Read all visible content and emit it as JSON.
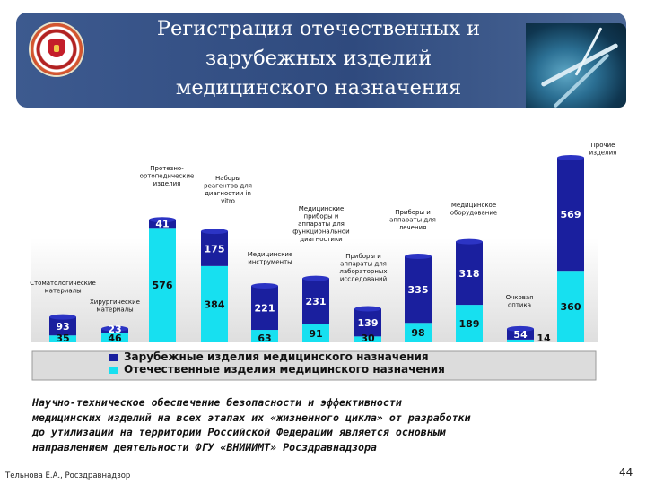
{
  "slide": {
    "title": "Регистрация отечественных и\nзарубежных изделий\nмедицинского назначения",
    "caption": "Научно-техническое обеспечение безопасности и эффективности\nмедицинских изделий на всех этапах их «жизненного цикла» от разработки\nдо утилизации на территории Российской Федерации является основным\nнаправлением деятельности ФГУ «ВНИИИМТ» Росздравнадзора",
    "author": "Тельнова Е.А., Росздравнадзор",
    "page_number": "44",
    "emblem_icon": "coat-of-arms-icon",
    "photo_icon": "surgical-instruments-image"
  },
  "chart_data": {
    "type": "bar",
    "stacked": true,
    "categories": [
      "Стоматологические\nматериалы",
      "Хирургические\nматериалы",
      "Протезно-\nортопедические\nизделия",
      "Наборы\nреагентов для\nдиагностии in\nvitro",
      "Медицинские\nинструменты",
      "Медицинские\nприборы и\nаппараты для\nфункциональной\nдиагностики",
      "Приборы и\nаппараты для\nлабораторных\nисследований",
      "Приборы и\nаппараты для\nлечения",
      "Медицинское\nоборудование",
      "Очковая\nоптика",
      "Прочие\nизделия"
    ],
    "series": [
      {
        "name": "Отечественные изделия медицинского назначения",
        "color": "#17e0f0",
        "values": [
          35,
          46,
          576,
          384,
          63,
          91,
          30,
          98,
          189,
          14,
          360
        ]
      },
      {
        "name": "Зарубежные изделия медицинского назначения",
        "color": "#1a1f9e",
        "values": [
          93,
          23,
          41,
          175,
          221,
          231,
          139,
          335,
          318,
          54,
          569
        ]
      }
    ],
    "legend_position": "bottom",
    "grid": false
  }
}
